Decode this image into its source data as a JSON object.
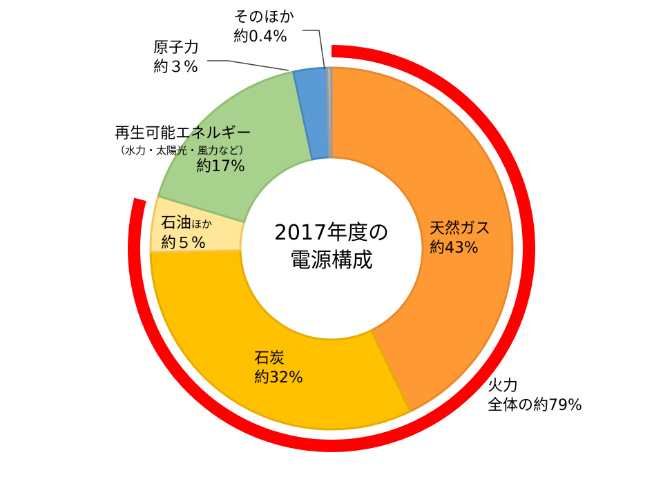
{
  "chart_data": {
    "type": "pie",
    "title": "2017年度の",
    "title_line2": "電源構成",
    "slices": [
      {
        "name": "天然ガス",
        "value": 43,
        "label_value": "約43%",
        "color": "#FF9933",
        "edge": "#E8882A"
      },
      {
        "name": "石炭",
        "value": 32,
        "label_value": "約32%",
        "color": "#FFC000",
        "edge": "#E6AC00"
      },
      {
        "name": "石油ほか",
        "value": 5,
        "label_value": "約５%",
        "color": "#FFE699",
        "edge": "#F2C85C"
      },
      {
        "name": "再生可能エネルギー",
        "sublabel": "（水力・太陽光・風力など）",
        "value": 17,
        "label_value": "約17%",
        "color": "#A9D18E",
        "edge": "#8FBF70"
      },
      {
        "name": "原子力",
        "value": 3,
        "label_value": "約３%",
        "color": "#5B9BD5",
        "edge": "#4A86C0"
      },
      {
        "name": "そのほか",
        "value": 0.4,
        "label_value": "約0.4%",
        "color": "#B4B4B4",
        "edge": "#999999"
      }
    ],
    "outer_ring": {
      "label": "火力",
      "value_label": "全体の約79%",
      "value": 79,
      "color": "#FF0000"
    }
  },
  "labels": {
    "gas_name": "天然ガス",
    "gas_value": "約43%",
    "coal_name": "石炭",
    "coal_value": "約32%",
    "oil_name": "石油",
    "oil_suffix": "ほか",
    "oil_value": "約５%",
    "renew_name": "再生可能エネルギー",
    "renew_sub": "（水力・太陽光・風力など）",
    "renew_value": "約17%",
    "nuclear_name": "原子力",
    "nuclear_value": "約３%",
    "other_name": "そのほか",
    "other_value": "約0.4%",
    "thermal_name": "火力",
    "thermal_value": "全体の約79%"
  }
}
